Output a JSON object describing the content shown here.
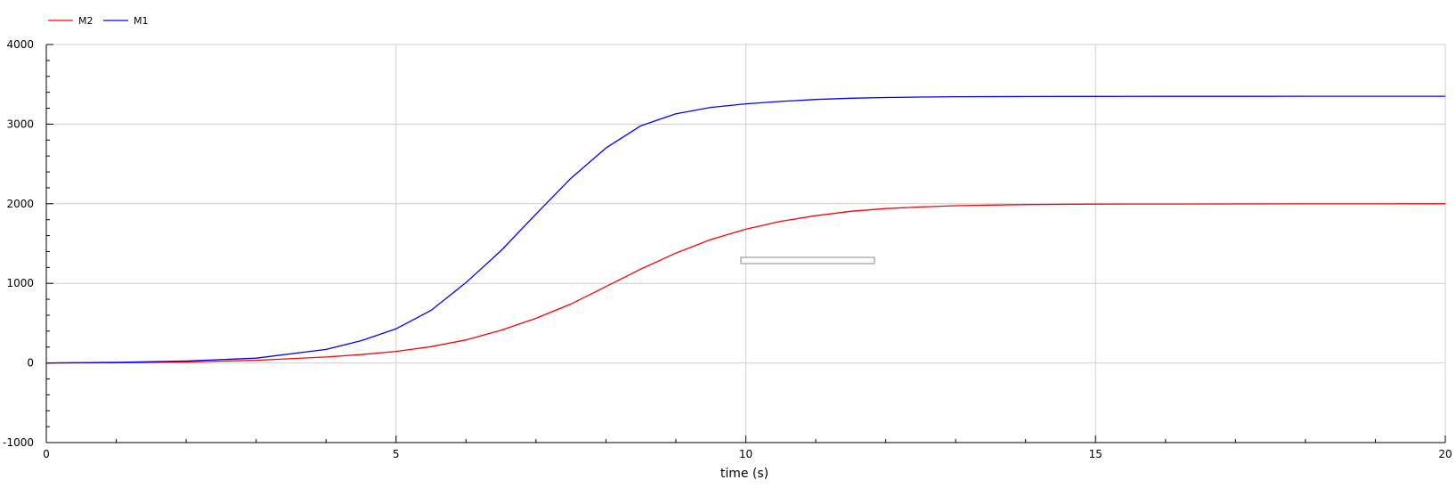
{
  "chart_data": {
    "type": "line",
    "title": "",
    "xlabel": "time (s)",
    "ylabel": "",
    "xlim": [
      0,
      20
    ],
    "ylim": [
      -1000,
      4000
    ],
    "x_ticks": [
      0,
      5,
      10,
      15,
      20
    ],
    "y_ticks": [
      -1000,
      0,
      1000,
      2000,
      3000,
      4000
    ],
    "x_tick_labels": [
      "0",
      "5",
      "10",
      "15",
      "20"
    ],
    "y_tick_labels": [
      "-1000",
      "0",
      "1000",
      "2000",
      "3000",
      "4000"
    ],
    "grid": true,
    "legend_position": "top-left",
    "x": [
      0,
      1,
      2,
      3,
      4,
      4.5,
      5,
      5.5,
      6,
      6.5,
      7,
      7.5,
      8,
      8.5,
      9,
      9.5,
      10,
      10.5,
      11,
      11.5,
      12,
      12.5,
      13,
      14,
      15,
      16,
      17,
      18,
      19,
      20
    ],
    "series": [
      {
        "name": "M2",
        "color": "#ff0000",
        "values": [
          0,
          3,
          12,
          33,
          75,
          105,
          145,
          205,
          290,
          410,
          560,
          740,
          960,
          1180,
          1380,
          1550,
          1680,
          1780,
          1850,
          1905,
          1940,
          1960,
          1975,
          1990,
          1995,
          1997,
          1998,
          1999,
          1999,
          2000
        ]
      },
      {
        "name": "M1",
        "color": "#0000ff",
        "values": [
          0,
          8,
          25,
          60,
          170,
          280,
          430,
          660,
          1010,
          1410,
          1870,
          2320,
          2700,
          2980,
          3130,
          3210,
          3255,
          3285,
          3310,
          3325,
          3335,
          3340,
          3345,
          3347,
          3348,
          3349,
          3349,
          3350,
          3350,
          3350
        ]
      }
    ]
  }
}
